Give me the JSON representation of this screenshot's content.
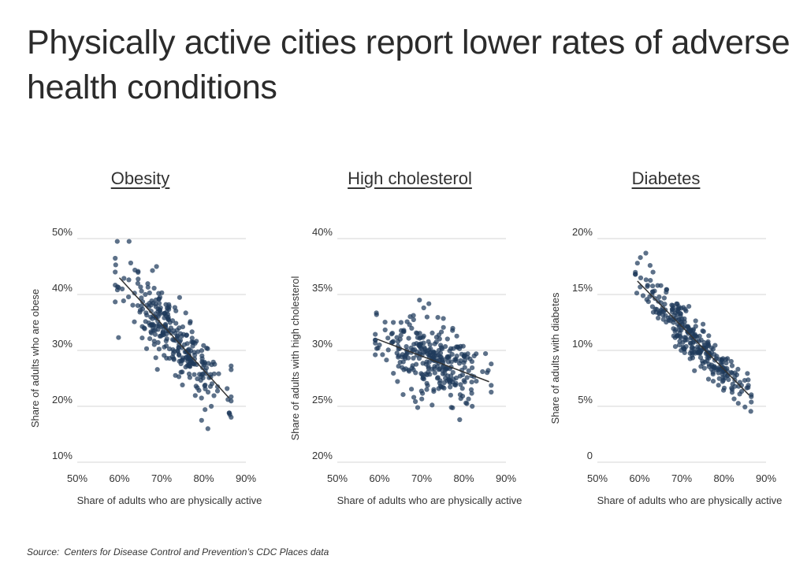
{
  "page": {
    "title": "Physically active cities report lower rates of adverse health conditions",
    "source_label": "Source:",
    "source_text": "Centers for Disease Control and Prevention’s CDC Places data"
  },
  "colors": {
    "point": "#1f3a5c",
    "trend": "#333333",
    "grid": "#d6d6d6",
    "text": "#333333"
  },
  "chart_data": [
    {
      "type": "scatter",
      "title": "Obesity",
      "xlabel": "Share of adults who are physically active",
      "ylabel": "Share of adults who are obese",
      "xlim": [
        50,
        90
      ],
      "ylim": [
        10,
        50
      ],
      "xticks": [
        50,
        60,
        70,
        80,
        90
      ],
      "yticks": [
        10,
        20,
        30,
        40,
        50
      ],
      "xtick_labels": [
        "50%",
        "60%",
        "70%",
        "80%",
        "90%"
      ],
      "ytick_labels": [
        "10%",
        "20%",
        "30%",
        "40%",
        "50%"
      ],
      "trend": {
        "x": [
          60,
          86
        ],
        "y": [
          43,
          21.5
        ]
      },
      "points": {
        "x_mean": 73,
        "x_sd": 6.0,
        "x_min": 59,
        "x_max": 86.5,
        "slope": -0.82,
        "x0": 60,
        "y0": 43,
        "noise_sd": 3.0,
        "count": 300,
        "seed": 11
      },
      "extra_points": [
        [
          59.5,
          49.5
        ],
        [
          62.3,
          49.5
        ],
        [
          68.8,
          45
        ],
        [
          81,
          16
        ],
        [
          79.5,
          17.5
        ],
        [
          59.8,
          32.3
        ],
        [
          81.8,
          20
        ]
      ]
    },
    {
      "type": "scatter",
      "title": "High cholesterol",
      "xlabel": "Share of adults who are physically active",
      "ylabel": "Share of adults with high cholesterol",
      "xlim": [
        50,
        90
      ],
      "ylim": [
        20,
        40
      ],
      "xticks": [
        50,
        60,
        70,
        80,
        90
      ],
      "yticks": [
        20,
        25,
        30,
        35,
        40
      ],
      "xtick_labels": [
        "50%",
        "60%",
        "70%",
        "80%",
        "90%"
      ],
      "ytick_labels": [
        "20%",
        "25%",
        "30%",
        "35%",
        "40%"
      ],
      "trend": {
        "x": [
          59.5,
          86
        ],
        "y": [
          31,
          27.2
        ]
      },
      "points": {
        "x_mean": 72,
        "x_sd": 6.0,
        "x_min": 59,
        "x_max": 86.5,
        "slope": -0.143,
        "x0": 59.5,
        "y0": 31,
        "noise_sd": 1.6,
        "count": 300,
        "seed": 23
      },
      "extra_points": [
        [
          69.5,
          34.5
        ],
        [
          70.5,
          33.8
        ],
        [
          59.3,
          33.2
        ],
        [
          82,
          25
        ],
        [
          80.5,
          25.3
        ]
      ]
    },
    {
      "type": "scatter",
      "title": "Diabetes",
      "xlabel": "Share of adults who are physically active",
      "ylabel": "Share of adults with diabetes",
      "xlim": [
        50,
        90
      ],
      "ylim": [
        0,
        20
      ],
      "xticks": [
        50,
        60,
        70,
        80,
        90
      ],
      "yticks": [
        0,
        5,
        10,
        15,
        20
      ],
      "xtick_labels": [
        "50%",
        "60%",
        "70%",
        "80%",
        "90%"
      ],
      "ytick_labels": [
        "0",
        "5%",
        "10%",
        "15%",
        "20%"
      ],
      "trend": {
        "x": [
          59.5,
          86
        ],
        "y": [
          16.2,
          6
        ]
      },
      "points": {
        "x_mean": 73,
        "x_sd": 6.0,
        "x_min": 59,
        "x_max": 86.5,
        "slope": -0.385,
        "x0": 59.5,
        "y0": 16.2,
        "noise_sd": 1.0,
        "count": 300,
        "seed": 37
      },
      "extra_points": [
        [
          61.5,
          18.7
        ],
        [
          60.2,
          18.3
        ],
        [
          59.5,
          17.8
        ],
        [
          62.5,
          17.6
        ],
        [
          63.2,
          17.0
        ]
      ]
    }
  ]
}
